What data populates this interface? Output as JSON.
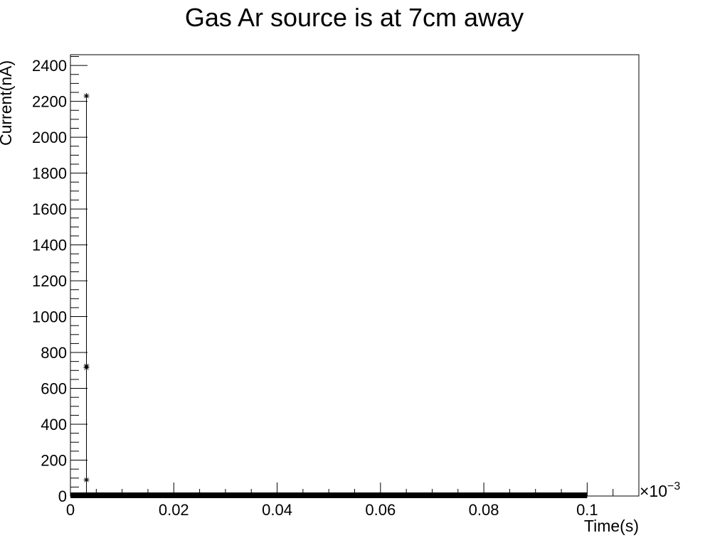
{
  "chart_data": {
    "type": "scatter",
    "title": "Gas Ar source is at 7cm away",
    "xlabel": "Time(s)",
    "ylabel": "Current(nA)",
    "x_exponent_label": "×10",
    "x_exponent_power": "−3",
    "xlim": [
      0,
      0.11
    ],
    "ylim": [
      0,
      2460
    ],
    "x_ticks": [
      {
        "value": 0,
        "label": "0"
      },
      {
        "value": 0.02,
        "label": "0.02"
      },
      {
        "value": 0.04,
        "label": "0.04"
      },
      {
        "value": 0.06,
        "label": "0.06"
      },
      {
        "value": 0.08,
        "label": "0.08"
      },
      {
        "value": 0.1,
        "label": "0.1"
      }
    ],
    "y_ticks": [
      {
        "value": 0,
        "label": "0"
      },
      {
        "value": 200,
        "label": "200"
      },
      {
        "value": 400,
        "label": "400"
      },
      {
        "value": 600,
        "label": "600"
      },
      {
        "value": 800,
        "label": "800"
      },
      {
        "value": 1000,
        "label": "1000"
      },
      {
        "value": 1200,
        "label": "1200"
      },
      {
        "value": 1400,
        "label": "1400"
      },
      {
        "value": 1600,
        "label": "1600"
      },
      {
        "value": 1800,
        "label": "1800"
      },
      {
        "value": 2000,
        "label": "2000"
      },
      {
        "value": 2200,
        "label": "2200"
      },
      {
        "value": 2400,
        "label": "2400"
      }
    ],
    "grid": false,
    "marker": "star",
    "series": [
      {
        "spike_points": [
          {
            "x": 0.0031,
            "y": 2230
          },
          {
            "x": 0.0031,
            "y": 725
          },
          {
            "x": 0.0031,
            "y": 715
          },
          {
            "x": 0.0031,
            "y": 90
          }
        ],
        "baseline": {
          "x_start": 0,
          "x_end": 0.1,
          "y": 0
        }
      }
    ],
    "colors": {
      "marker": "#000000",
      "axis": "#000000",
      "background": "#ffffff"
    }
  }
}
